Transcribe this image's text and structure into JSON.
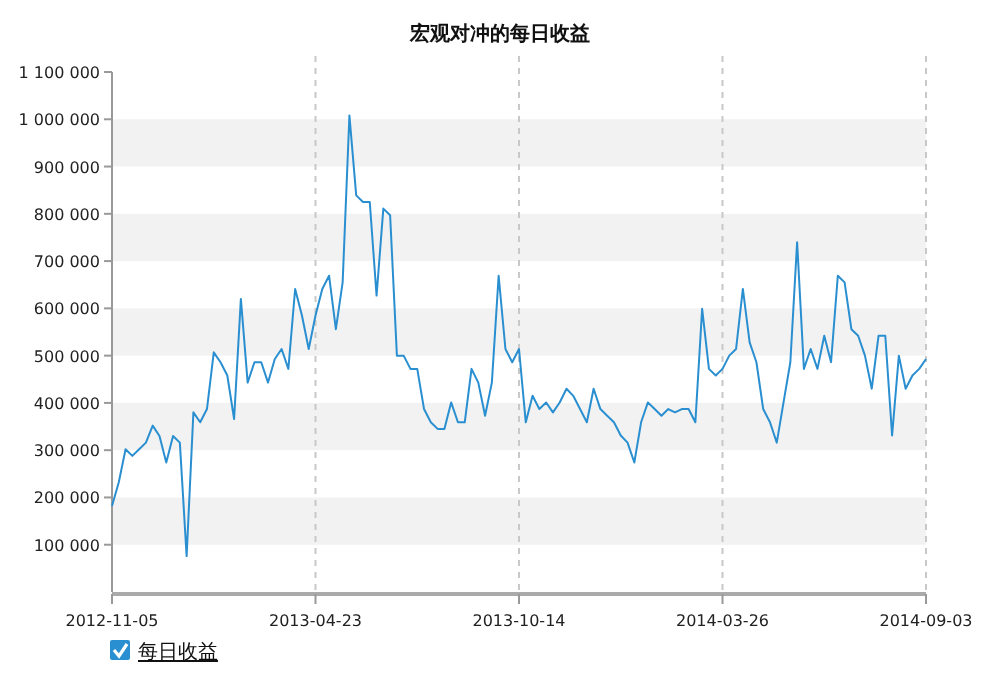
{
  "chart_data": {
    "type": "line",
    "title": "宏观对冲的每日收益",
    "categories": [
      "2012-11-05",
      null,
      null,
      null,
      null,
      null,
      null,
      null,
      null,
      null,
      null,
      null,
      null,
      null,
      null,
      null,
      null,
      null,
      null,
      null,
      null,
      null,
      null,
      null,
      null,
      null,
      null,
      null,
      null,
      null,
      "2013-04-23",
      null,
      null,
      null,
      null,
      null,
      null,
      null,
      null,
      null,
      null,
      null,
      null,
      null,
      null,
      null,
      null,
      null,
      null,
      null,
      null,
      null,
      null,
      null,
      null,
      null,
      null,
      null,
      null,
      null,
      "2013-10-14",
      null,
      null,
      null,
      null,
      null,
      null,
      null,
      null,
      null,
      null,
      null,
      null,
      null,
      null,
      null,
      null,
      null,
      null,
      null,
      null,
      null,
      null,
      null,
      null,
      null,
      null,
      null,
      null,
      null,
      "2014-03-26",
      null,
      null,
      null,
      null,
      null,
      null,
      null,
      null,
      null,
      null,
      null,
      null,
      null,
      null,
      null,
      null,
      null,
      null,
      null,
      null,
      null,
      null,
      null,
      null,
      null,
      null,
      null,
      null,
      null,
      "2014-09-03"
    ],
    "series": [
      {
        "name": "每日收益",
        "color": "#2a8fd0",
        "values": [
          182000,
          232000,
          302000,
          288000,
          302000,
          316000,
          352000,
          330000,
          274000,
          330000,
          316000,
          76000,
          380000,
          359000,
          387000,
          507000,
          486000,
          458000,
          366000,
          620000,
          443000,
          486000,
          486000,
          443000,
          493000,
          514000,
          472000,
          641000,
          585000,
          514000,
          585000,
          641000,
          669000,
          556000,
          655000,
          1008000,
          839000,
          825000,
          825000,
          627000,
          811000,
          797000,
          500000,
          500000,
          472000,
          472000,
          387000,
          359000,
          345000,
          345000,
          401000,
          359000,
          359000,
          472000,
          443000,
          373000,
          443000,
          669000,
          514000,
          486000,
          514000,
          359000,
          415000,
          387000,
          401000,
          380000,
          401000,
          430000,
          415000,
          387000,
          359000,
          430000,
          387000,
          373000,
          359000,
          331000,
          316000,
          274000,
          359000,
          401000,
          387000,
          373000,
          387000,
          380000,
          387000,
          387000,
          359000,
          599000,
          472000,
          458000,
          472000,
          500000,
          514000,
          641000,
          528000,
          486000,
          387000,
          359000,
          316000,
          401000,
          486000,
          740000,
          472000,
          514000,
          472000,
          542000,
          486000,
          669000,
          655000,
          556000,
          542000,
          500000,
          430000,
          542000,
          542000,
          331000,
          500000,
          430000,
          458000,
          472000,
          493000
        ]
      }
    ],
    "ylim": [
      0,
      1100000
    ],
    "yticks": [
      {
        "value": 100000,
        "label": "100 000"
      },
      {
        "value": 200000,
        "label": "200 000"
      },
      {
        "value": 300000,
        "label": "300 000"
      },
      {
        "value": 400000,
        "label": "400 000"
      },
      {
        "value": 500000,
        "label": "500 000"
      },
      {
        "value": 600000,
        "label": "600 000"
      },
      {
        "value": 700000,
        "label": "700 000"
      },
      {
        "value": 800000,
        "label": "800 000"
      },
      {
        "value": 900000,
        "label": "900 000"
      },
      {
        "value": 1000000,
        "label": "1 000 000"
      },
      {
        "value": 1100000,
        "label": "1 100 000"
      }
    ],
    "grid": true,
    "legend": "bottom left"
  }
}
